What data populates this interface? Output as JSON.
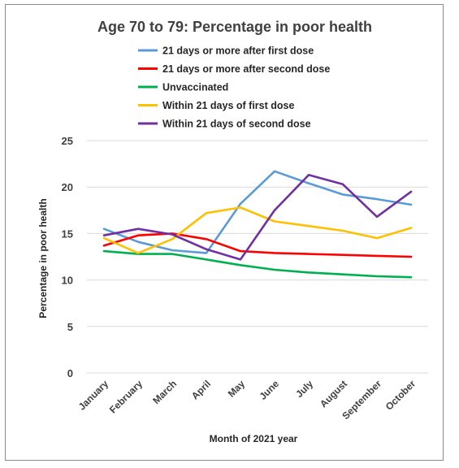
{
  "chart_data": {
    "type": "line",
    "title": "Age 70 to 79: Percentage in poor health",
    "xlabel": "Month of 2021 year",
    "ylabel": "Percentage in poor health",
    "ylim": [
      0,
      25
    ],
    "yticks": [
      0,
      5,
      10,
      15,
      20,
      25
    ],
    "grid": true,
    "legend_position": "top",
    "categories": [
      "January",
      "February",
      "March",
      "April",
      "May",
      "June",
      "July",
      "August",
      "September",
      "October"
    ],
    "series": [
      {
        "name": "21 days or more after first dose",
        "color": "#5B9BD5",
        "values": [
          15.5,
          14.1,
          13.2,
          12.9,
          18.2,
          21.7,
          20.4,
          19.2,
          18.7,
          18.1
        ]
      },
      {
        "name": "21 days or more after second dose",
        "color": "#FF0000",
        "values": [
          13.7,
          14.8,
          15.0,
          14.4,
          13.1,
          12.9,
          12.8,
          12.7,
          12.6,
          12.5
        ]
      },
      {
        "name": "Unvaccinated",
        "color": "#00B050",
        "values": [
          13.1,
          12.8,
          12.8,
          12.2,
          11.6,
          11.1,
          10.8,
          10.6,
          10.4,
          10.3
        ]
      },
      {
        "name": "Within 21 days of first dose",
        "color": "#FFC000",
        "values": [
          14.5,
          12.9,
          14.4,
          17.2,
          17.8,
          16.3,
          15.8,
          15.3,
          14.5,
          15.6
        ]
      },
      {
        "name": "Within 21 days of second dose",
        "color": "#7030A0",
        "values": [
          14.8,
          15.5,
          14.9,
          13.3,
          12.2,
          17.5,
          21.3,
          20.3,
          16.8,
          19.5
        ]
      }
    ]
  }
}
